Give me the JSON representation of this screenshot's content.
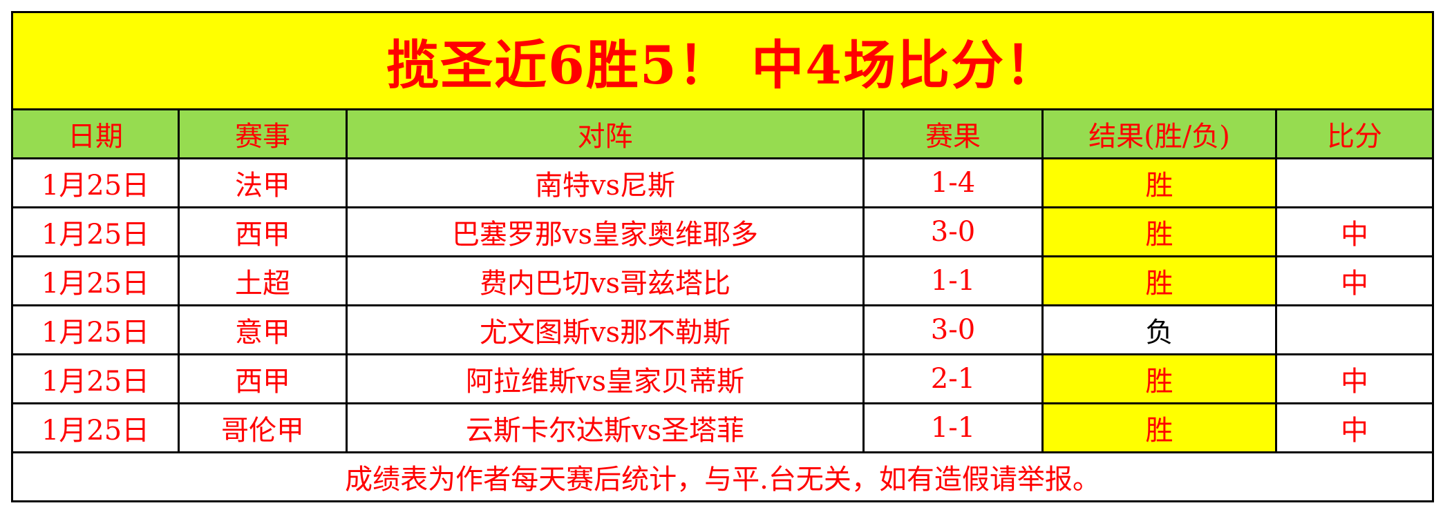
{
  "title": "揽圣近6胜5！ 中4场比分！",
  "headers": [
    "日期",
    "赛事",
    "对阵",
    "赛果",
    "结果(胜/负)",
    "比分"
  ],
  "rows": [
    {
      "date": "1月25日",
      "league": "法甲",
      "match": "南特vs尼斯",
      "score": "1-4",
      "result": "胜",
      "hit": ""
    },
    {
      "date": "1月25日",
      "league": "西甲",
      "match": "巴塞罗那vs皇家奥维耶多",
      "score": "3-0",
      "result": "胜",
      "hit": "中"
    },
    {
      "date": "1月25日",
      "league": "土超",
      "match": "费内巴切vs哥兹塔比",
      "score": "1-1",
      "result": "胜",
      "hit": "中"
    },
    {
      "date": "1月25日",
      "league": "意甲",
      "match": "尤文图斯vs那不勒斯",
      "score": "3-0",
      "result": "负",
      "hit": ""
    },
    {
      "date": "1月25日",
      "league": "西甲",
      "match": "阿拉维斯vs皇家贝蒂斯",
      "score": "2-1",
      "result": "胜",
      "hit": "中"
    },
    {
      "date": "1月25日",
      "league": "哥伦甲",
      "match": "云斯卡尔达斯vs圣塔菲",
      "score": "1-1",
      "result": "胜",
      "hit": "中"
    }
  ],
  "footer": "成绩表为作者每天赛后统计，与平.台无关，如有造假请举报。",
  "colors": {
    "title_bg": "#ffff00",
    "header_bg": "#96dc50",
    "text": "#ff0000",
    "win_bg": "#ffff00"
  }
}
